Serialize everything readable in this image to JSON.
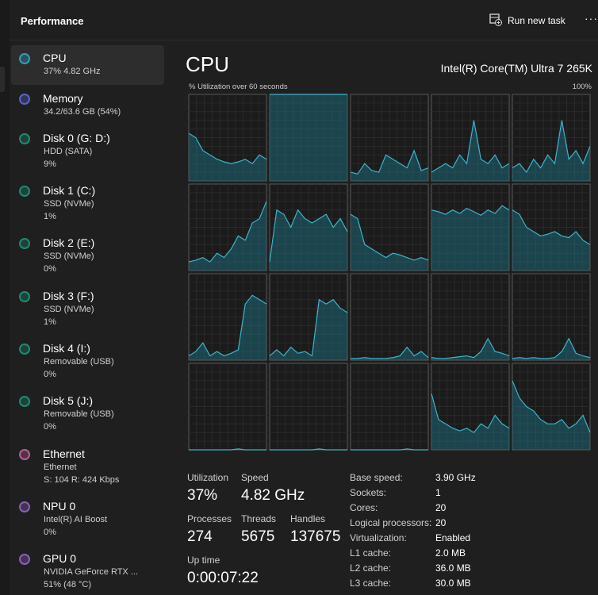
{
  "header": {
    "title": "Performance",
    "action": "Run new task"
  },
  "sidebar": {
    "items": [
      {
        "name": "CPU",
        "lines": [
          "37%  4.82 GHz"
        ],
        "color": "#2aa0b8"
      },
      {
        "name": "Memory",
        "lines": [
          "34.2/63.6 GB (54%)"
        ],
        "color": "#5a62c8"
      },
      {
        "name": "Disk 0 (G: D:)",
        "lines": [
          "HDD (SATA)",
          "9%"
        ],
        "color": "#1e8a72"
      },
      {
        "name": "Disk 1 (C:)",
        "lines": [
          "SSD (NVMe)",
          "1%"
        ],
        "color": "#1e8a72"
      },
      {
        "name": "Disk 2 (E:)",
        "lines": [
          "SSD (NVMe)",
          "0%"
        ],
        "color": "#1e8a72"
      },
      {
        "name": "Disk 3 (F:)",
        "lines": [
          "SSD (NVMe)",
          "1%"
        ],
        "color": "#1e8a72"
      },
      {
        "name": "Disk 4 (I:)",
        "lines": [
          "Removable (USB)",
          "0%"
        ],
        "color": "#1e8a72"
      },
      {
        "name": "Disk 5 (J:)",
        "lines": [
          "Removable (USB)",
          "0%"
        ],
        "color": "#1e8a72"
      },
      {
        "name": "Ethernet",
        "lines": [
          "Ethernet",
          "S: 104  R: 424 Kbps"
        ],
        "color": "#b5608e"
      },
      {
        "name": "NPU 0",
        "lines": [
          "Intel(R) AI Boost",
          "0%"
        ],
        "color": "#8a5fb8"
      },
      {
        "name": "GPU 0",
        "lines": [
          "NVIDIA GeForce RTX ...",
          "51% (48 °C)"
        ],
        "color": "#8a5fb8"
      }
    ]
  },
  "main": {
    "title": "CPU",
    "processor": "Intel(R) Core(TM) Ultra 7 265K",
    "graph_label": "% Utilization over 60 seconds",
    "graph_max": "100%",
    "ylim": [
      0,
      100
    ],
    "cores": [
      {
        "values": [
          55,
          50,
          35,
          30,
          25,
          22,
          20,
          22,
          25,
          20,
          30,
          25
        ]
      },
      {
        "values": [
          100,
          100,
          100,
          100,
          100,
          100,
          100,
          100,
          100,
          100,
          100,
          100
        ]
      },
      {
        "values": [
          10,
          8,
          20,
          12,
          10,
          30,
          25,
          20,
          15,
          35,
          12,
          15
        ]
      },
      {
        "values": [
          10,
          15,
          20,
          15,
          30,
          20,
          70,
          25,
          20,
          30,
          15,
          20
        ]
      },
      {
        "values": [
          15,
          20,
          10,
          25,
          15,
          30,
          20,
          70,
          25,
          35,
          20,
          40
        ]
      },
      {
        "values": [
          10,
          12,
          15,
          10,
          20,
          15,
          25,
          40,
          35,
          55,
          60,
          80
        ]
      },
      {
        "values": [
          10,
          70,
          65,
          50,
          70,
          60,
          55,
          60,
          65,
          50,
          60,
          45
        ]
      },
      {
        "values": [
          65,
          60,
          30,
          25,
          20,
          15,
          20,
          18,
          15,
          12,
          15,
          12
        ]
      },
      {
        "values": [
          70,
          68,
          65,
          70,
          66,
          72,
          68,
          64,
          70,
          66,
          75,
          70
        ]
      },
      {
        "values": [
          70,
          65,
          50,
          45,
          40,
          42,
          45,
          40,
          38,
          45,
          35,
          30
        ]
      },
      {
        "values": [
          5,
          10,
          20,
          5,
          10,
          5,
          8,
          12,
          65,
          75,
          70,
          65
        ]
      },
      {
        "values": [
          5,
          12,
          5,
          15,
          8,
          10,
          5,
          70,
          65,
          70,
          60,
          55
        ]
      },
      {
        "values": [
          2,
          2,
          3,
          2,
          2,
          2,
          3,
          5,
          15,
          5,
          10,
          3
        ]
      },
      {
        "values": [
          3,
          2,
          2,
          3,
          4,
          5,
          3,
          10,
          25,
          10,
          8,
          5
        ]
      },
      {
        "values": [
          2,
          3,
          2,
          3,
          2,
          2,
          3,
          10,
          25,
          8,
          5,
          3
        ]
      },
      {
        "values": [
          0,
          0,
          0,
          0,
          0,
          0,
          0,
          1,
          0,
          0,
          0,
          0
        ]
      },
      {
        "values": [
          0,
          0,
          0,
          0,
          0,
          0,
          0,
          1,
          0,
          0,
          0,
          0
        ]
      },
      {
        "values": [
          0,
          0,
          0,
          0,
          0,
          0,
          0,
          0,
          1,
          0,
          0,
          0
        ]
      },
      {
        "values": [
          65,
          35,
          30,
          25,
          22,
          25,
          20,
          30,
          25,
          40,
          30,
          25
        ]
      },
      {
        "values": [
          80,
          60,
          50,
          45,
          35,
          30,
          30,
          35,
          25,
          30,
          40,
          20
        ]
      }
    ],
    "stats": [
      {
        "label": "Utilization",
        "value": "37%"
      },
      {
        "label": "Speed",
        "value": "4.82 GHz"
      },
      {
        "label": "Processes",
        "value": "274"
      },
      {
        "label": "Threads",
        "value": "5675"
      },
      {
        "label": "Handles",
        "value": "137675"
      },
      {
        "label": "Up time",
        "value": "0:00:07:22"
      }
    ],
    "details": [
      {
        "key": "Base speed:",
        "value": "3.90 GHz"
      },
      {
        "key": "Sockets:",
        "value": "1"
      },
      {
        "key": "Cores:",
        "value": "20"
      },
      {
        "key": "Logical processors:",
        "value": "20"
      },
      {
        "key": "Virtualization:",
        "value": "Enabled"
      },
      {
        "key": "L1 cache:",
        "value": "2.0 MB"
      },
      {
        "key": "L2 cache:",
        "value": "36.0 MB"
      },
      {
        "key": "L3 cache:",
        "value": "30.0 MB"
      }
    ]
  }
}
